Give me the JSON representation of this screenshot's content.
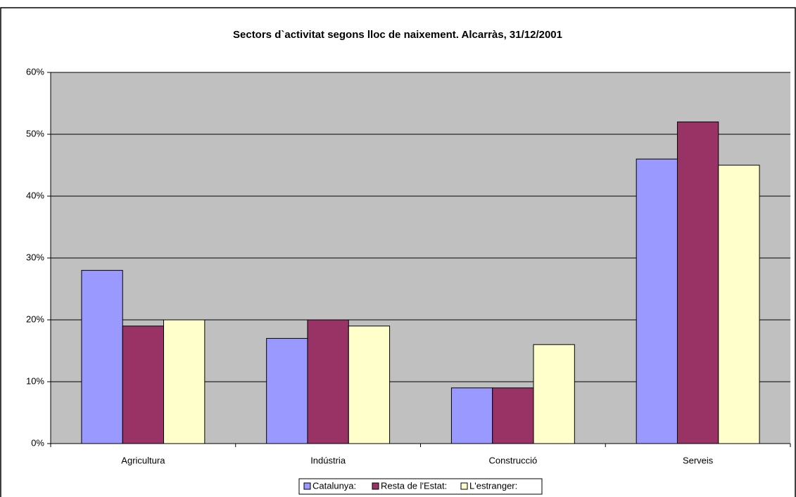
{
  "chart_data": {
    "type": "bar",
    "title": "Sectors d`activitat segons lloc de naixement. Alcarràs, 31/12/2001",
    "categories": [
      "Agricultura",
      "Indústria",
      "Construcció",
      "Serveis"
    ],
    "series": [
      {
        "name": "Catalunya:",
        "color": "#9999ff",
        "values": [
          28,
          17,
          9,
          46
        ]
      },
      {
        "name": "Resta de l'Estat:",
        "color": "#993366",
        "values": [
          19,
          20,
          9,
          52
        ]
      },
      {
        "name": "L'estranger:",
        "color": "#ffffcc",
        "values": [
          20,
          19,
          16,
          45
        ]
      }
    ],
    "ylim": [
      0,
      60
    ],
    "yticks": [
      {
        "value": 0,
        "label": "0%"
      },
      {
        "value": 10,
        "label": "10%"
      },
      {
        "value": 20,
        "label": "20%"
      },
      {
        "value": 30,
        "label": "30%"
      },
      {
        "value": 40,
        "label": "40%"
      },
      {
        "value": 50,
        "label": "50%"
      },
      {
        "value": 60,
        "label": "60%"
      }
    ],
    "grid": true,
    "legend": "bottom"
  }
}
